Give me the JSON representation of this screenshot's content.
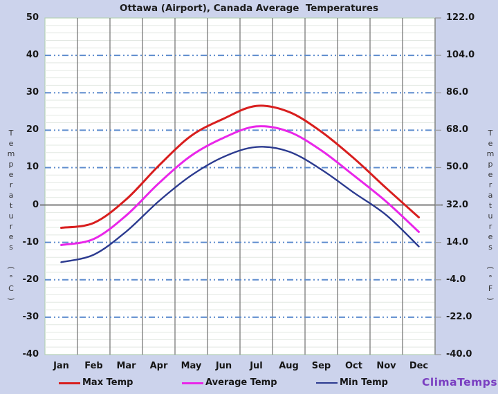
{
  "title_bar": "Ottawa (Airport), Canada Average  Temperatures",
  "axis_labels": {
    "left": "Temperatures (°C)",
    "right": "Temperatures (°F)"
  },
  "branding": {
    "label": "ClimaTemps",
    "color": "#7a3fc1"
  },
  "chart_data": {
    "type": "line",
    "title": "Ottawa (Airport), Canada Average  Temperatures",
    "categories": [
      "Jan",
      "Feb",
      "Mar",
      "Apr",
      "May",
      "Jun",
      "Jul",
      "Aug",
      "Sep",
      "Oct",
      "Nov",
      "Dec"
    ],
    "series": [
      {
        "name": "Max Temp",
        "color": "#d81e1e",
        "width": 3,
        "values": [
          -6.1,
          -4.8,
          1.5,
          10.5,
          18.5,
          23.1,
          26.5,
          24.9,
          19.6,
          12.5,
          4.5,
          -3.3
        ]
      },
      {
        "name": "Average Temp",
        "color": "#e926e9",
        "width": 3,
        "values": [
          -10.7,
          -9.1,
          -2.8,
          5.8,
          13.2,
          18.0,
          21.0,
          19.6,
          14.6,
          7.9,
          0.9,
          -7.2
        ]
      },
      {
        "name": "Min Temp",
        "color": "#2b3a8f",
        "width": 2.4,
        "values": [
          -15.3,
          -13.3,
          -7.1,
          1.0,
          7.9,
          12.9,
          15.5,
          14.3,
          9.5,
          3.3,
          -2.7,
          -11.1
        ]
      }
    ],
    "ylabel_left": "Temperatures (°C)",
    "ylabel_right": "Temperatures (°F)",
    "ylim": [
      -40,
      50
    ],
    "yticks_c": [
      50,
      40,
      30,
      20,
      10,
      0,
      -10,
      -20,
      -30,
      -40
    ],
    "yticks_f": [
      "122.0",
      "104.0",
      "86.0",
      "68.0",
      "50.0",
      "32.0",
      "14.0",
      "-4.0",
      "-22.0",
      "-40.0"
    ],
    "grid": true,
    "legend_position": "bottom",
    "colors": {
      "background": "#ccd3ec",
      "plot_background": "#ffffff",
      "frame": "#b5d1b5",
      "minor_grid": "#e2e8e2",
      "month_grid": "#787878",
      "major_grid_dashed": "#5d8cce",
      "zero_line": "#707070",
      "tick": "#999999"
    }
  }
}
